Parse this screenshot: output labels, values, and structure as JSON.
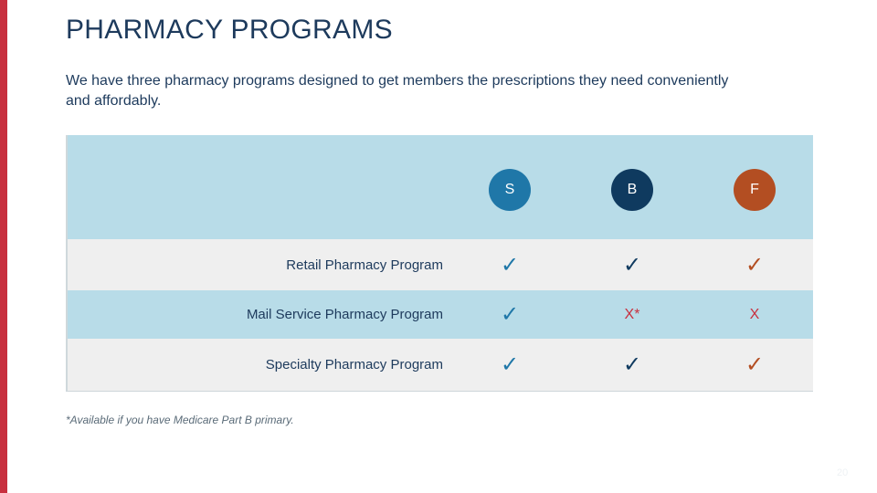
{
  "colors": {
    "accent_bar": "#c8303f",
    "text_navy": "#1d3a5c",
    "header_blue": "#b8dce8",
    "row_grey": "#efefef",
    "x_red": "#c8303f"
  },
  "title": "PHARMACY PROGRAMS",
  "intro": "We have three pharmacy programs designed to get members the prescriptions they need conveniently and affordably.",
  "columns": [
    {
      "label": "S",
      "color": "#1f77a8"
    },
    {
      "label": "B",
      "color": "#0f3a5f"
    },
    {
      "label": "F",
      "color": "#b34e22"
    }
  ],
  "rows": [
    {
      "label": "Retail Pharmacy Program",
      "cells": [
        "✓",
        "✓",
        "✓"
      ]
    },
    {
      "label": "Mail Service Pharmacy Program",
      "cells": [
        "✓",
        "X*",
        "X"
      ]
    },
    {
      "label": "Specialty Pharmacy Program",
      "cells": [
        "✓",
        "✓",
        "✓"
      ]
    }
  ],
  "cell_colors": [
    "#1f77a8",
    "#0f3a5f",
    "#b34e22"
  ],
  "footnote": "*Available if you have Medicare Part B primary.",
  "page_number": "20"
}
